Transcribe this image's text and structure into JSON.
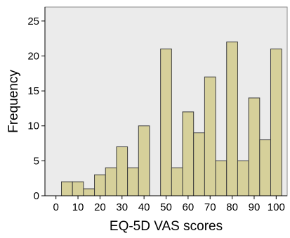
{
  "chart_data": {
    "type": "bar",
    "title": "",
    "xlabel": "EQ-5D VAS scores",
    "ylabel": "Frequency",
    "xlim": [
      -5,
      105
    ],
    "ylim": [
      0,
      27
    ],
    "bin_width": 5,
    "x_ticks": [
      0,
      10,
      20,
      30,
      40,
      50,
      60,
      70,
      80,
      90,
      100
    ],
    "y_ticks": [
      0,
      5,
      10,
      15,
      20,
      25
    ],
    "bins": [
      {
        "start": 2.5,
        "end": 7.5,
        "value": 2
      },
      {
        "start": 7.5,
        "end": 12.5,
        "value": 2
      },
      {
        "start": 12.5,
        "end": 17.5,
        "value": 1
      },
      {
        "start": 17.5,
        "end": 22.5,
        "value": 3
      },
      {
        "start": 22.5,
        "end": 27.5,
        "value": 4
      },
      {
        "start": 27.5,
        "end": 32.5,
        "value": 7
      },
      {
        "start": 32.5,
        "end": 37.5,
        "value": 4
      },
      {
        "start": 37.5,
        "end": 42.5,
        "value": 10
      },
      {
        "start": 42.5,
        "end": 47.5,
        "value": 0
      },
      {
        "start": 47.5,
        "end": 52.5,
        "value": 21
      },
      {
        "start": 52.5,
        "end": 57.5,
        "value": 4
      },
      {
        "start": 57.5,
        "end": 62.5,
        "value": 12
      },
      {
        "start": 62.5,
        "end": 67.5,
        "value": 9
      },
      {
        "start": 67.5,
        "end": 72.5,
        "value": 17
      },
      {
        "start": 72.5,
        "end": 77.5,
        "value": 5
      },
      {
        "start": 77.5,
        "end": 82.5,
        "value": 22
      },
      {
        "start": 82.5,
        "end": 87.5,
        "value": 5
      },
      {
        "start": 87.5,
        "end": 92.5,
        "value": 14
      },
      {
        "start": 92.5,
        "end": 97.5,
        "value": 8
      },
      {
        "start": 97.5,
        "end": 102.5,
        "value": 21
      }
    ],
    "grid": false,
    "legend": "none",
    "colors": {
      "plot_background": "#ebebeb",
      "bar_fill": "#d6d09a",
      "bar_stroke": "#3c3c3c",
      "axis": "#000000"
    }
  }
}
